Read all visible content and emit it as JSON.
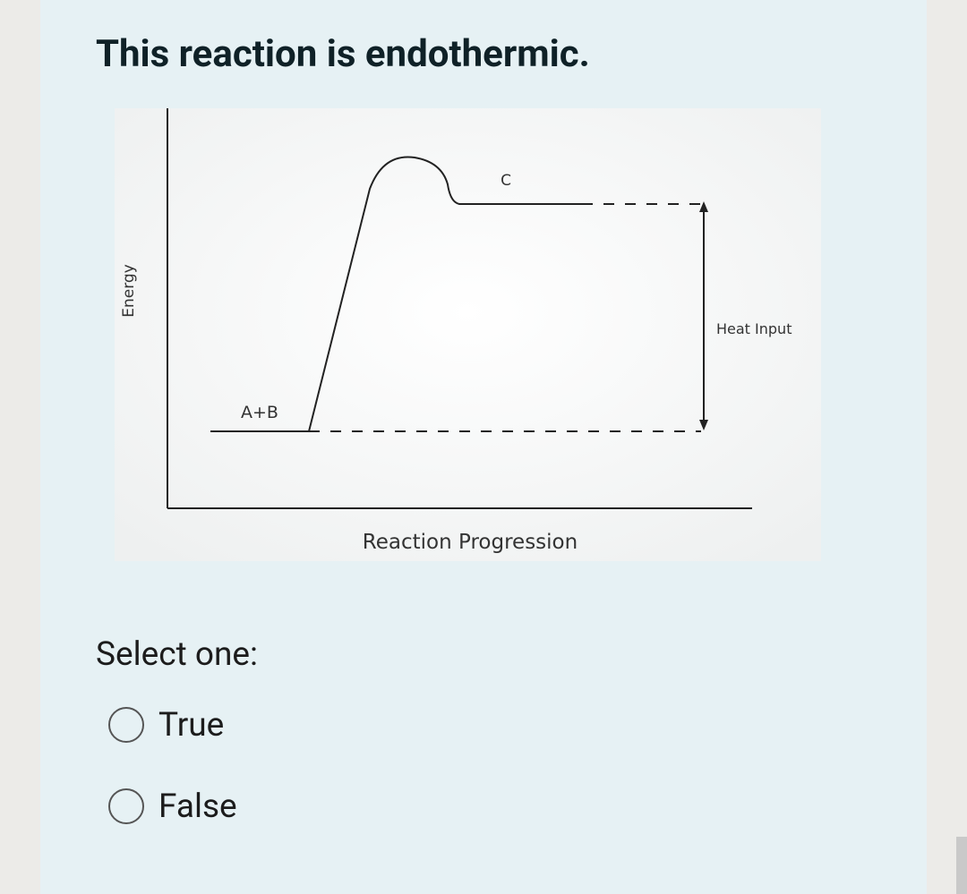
{
  "question": {
    "title": "This reaction is endothermic.",
    "prompt": "Select one:",
    "options": [
      "True",
      "False"
    ]
  },
  "diagram": {
    "y_label": "Energy",
    "x_label": "Reaction Progression",
    "reactants": "A+B",
    "product": "C",
    "arrow_label": "Heat Input"
  }
}
